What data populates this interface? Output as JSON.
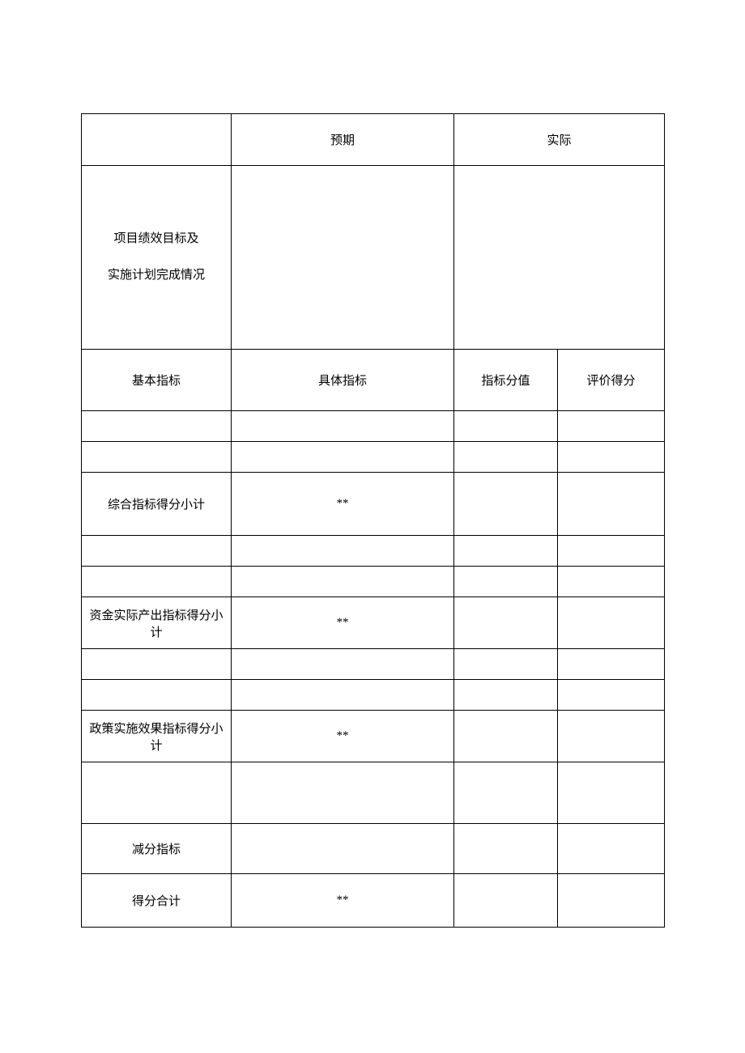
{
  "table": {
    "header_row": {
      "col2": "预期",
      "col3_4": "实际"
    },
    "body_row": {
      "col1_line1": "项目绩效目标及",
      "col1_line2": "实施计划完成情况"
    },
    "header2_row": {
      "col1": "基本指标",
      "col2": "具体指标",
      "col3": "指标分值",
      "col4": "评价得分"
    },
    "subtotal1": {
      "col1": "综合指标得分小计",
      "col2": "**"
    },
    "subtotal2": {
      "col1_line1": "资金实际产出指标得分小",
      "col1_line2": "计",
      "col2": "**"
    },
    "subtotal3": {
      "col1_line1": "政策实施效果指标得分小",
      "col1_line2": "计",
      "col2": "**"
    },
    "deduct": {
      "col1": "减分指标"
    },
    "total": {
      "col1": "得分合计",
      "col2": "**"
    }
  },
  "styling": {
    "border_color": "#000000",
    "background_color": "#ffffff",
    "text_color": "#000000",
    "font_size": 15,
    "font_family": "SimSun"
  }
}
